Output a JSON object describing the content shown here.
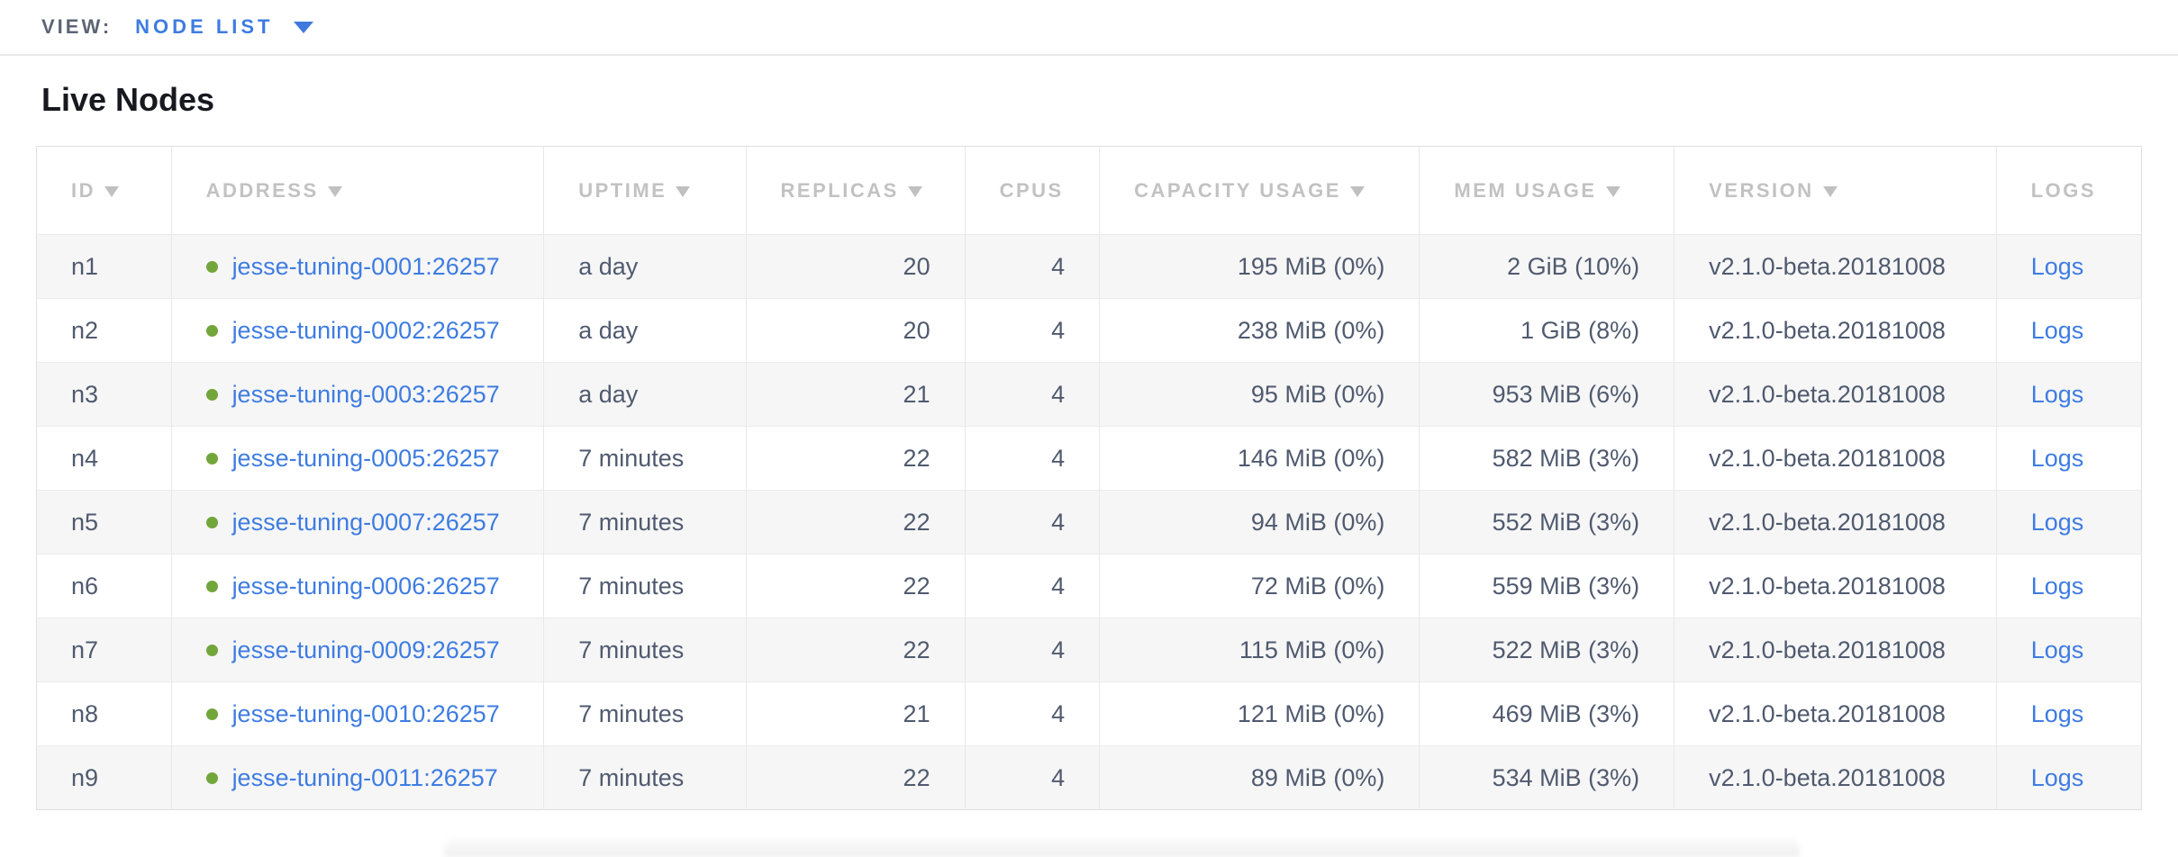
{
  "topbar": {
    "view_label": "VIEW:",
    "view_value": "NODE LIST",
    "caret_icon": "chevron-down"
  },
  "page": {
    "title": "Live Nodes"
  },
  "table": {
    "columns": [
      {
        "key": "id",
        "label": "ID",
        "sorted": true
      },
      {
        "key": "address",
        "label": "ADDRESS",
        "sorted": true
      },
      {
        "key": "uptime",
        "label": "UPTIME",
        "sorted": true
      },
      {
        "key": "replicas",
        "label": "REPLICAS",
        "sorted": true
      },
      {
        "key": "cpus",
        "label": "CPUS",
        "sorted": false
      },
      {
        "key": "capacity_usage",
        "label": "CAPACITY USAGE",
        "sorted": true
      },
      {
        "key": "mem_usage",
        "label": "MEM USAGE",
        "sorted": true
      },
      {
        "key": "version",
        "label": "VERSION",
        "sorted": true
      },
      {
        "key": "logs",
        "label": "LOGS",
        "sorted": false
      }
    ],
    "rows": [
      {
        "id": "n1",
        "status": "live",
        "address": "jesse-tuning-0001:26257",
        "uptime": "a day",
        "replicas": "20",
        "cpus": "4",
        "capacity_usage": "195 MiB (0%)",
        "mem_usage": "2 GiB (10%)",
        "version": "v2.1.0-beta.20181008",
        "logs": "Logs"
      },
      {
        "id": "n2",
        "status": "live",
        "address": "jesse-tuning-0002:26257",
        "uptime": "a day",
        "replicas": "20",
        "cpus": "4",
        "capacity_usage": "238 MiB (0%)",
        "mem_usage": "1 GiB (8%)",
        "version": "v2.1.0-beta.20181008",
        "logs": "Logs"
      },
      {
        "id": "n3",
        "status": "live",
        "address": "jesse-tuning-0003:26257",
        "uptime": "a day",
        "replicas": "21",
        "cpus": "4",
        "capacity_usage": "95 MiB (0%)",
        "mem_usage": "953 MiB (6%)",
        "version": "v2.1.0-beta.20181008",
        "logs": "Logs"
      },
      {
        "id": "n4",
        "status": "live",
        "address": "jesse-tuning-0005:26257",
        "uptime": "7 minutes",
        "replicas": "22",
        "cpus": "4",
        "capacity_usage": "146 MiB (0%)",
        "mem_usage": "582 MiB (3%)",
        "version": "v2.1.0-beta.20181008",
        "logs": "Logs"
      },
      {
        "id": "n5",
        "status": "live",
        "address": "jesse-tuning-0007:26257",
        "uptime": "7 minutes",
        "replicas": "22",
        "cpus": "4",
        "capacity_usage": "94 MiB (0%)",
        "mem_usage": "552 MiB (3%)",
        "version": "v2.1.0-beta.20181008",
        "logs": "Logs"
      },
      {
        "id": "n6",
        "status": "live",
        "address": "jesse-tuning-0006:26257",
        "uptime": "7 minutes",
        "replicas": "22",
        "cpus": "4",
        "capacity_usage": "72 MiB (0%)",
        "mem_usage": "559 MiB (3%)",
        "version": "v2.1.0-beta.20181008",
        "logs": "Logs"
      },
      {
        "id": "n7",
        "status": "live",
        "address": "jesse-tuning-0009:26257",
        "uptime": "7 minutes",
        "replicas": "22",
        "cpus": "4",
        "capacity_usage": "115 MiB (0%)",
        "mem_usage": "522 MiB (3%)",
        "version": "v2.1.0-beta.20181008",
        "logs": "Logs"
      },
      {
        "id": "n8",
        "status": "live",
        "address": "jesse-tuning-0010:26257",
        "uptime": "7 minutes",
        "replicas": "21",
        "cpus": "4",
        "capacity_usage": "121 MiB (0%)",
        "mem_usage": "469 MiB (3%)",
        "version": "v2.1.0-beta.20181008",
        "logs": "Logs"
      },
      {
        "id": "n9",
        "status": "live",
        "address": "jesse-tuning-0011:26257",
        "uptime": "7 minutes",
        "replicas": "22",
        "cpus": "4",
        "capacity_usage": "89 MiB (0%)",
        "mem_usage": "534 MiB (3%)",
        "version": "v2.1.0-beta.20181008",
        "logs": "Logs"
      }
    ]
  },
  "icons": {
    "view_caret": "chevron-down",
    "column_sort": "triangle-down",
    "node_status": "live-status-dot"
  },
  "colors": {
    "accent_blue": "#3e7ce2",
    "live_green": "#72a63b",
    "header_gray": "#c2c2c2",
    "body_text": "#505a6f",
    "row_stripe": "#f6f6f6"
  }
}
